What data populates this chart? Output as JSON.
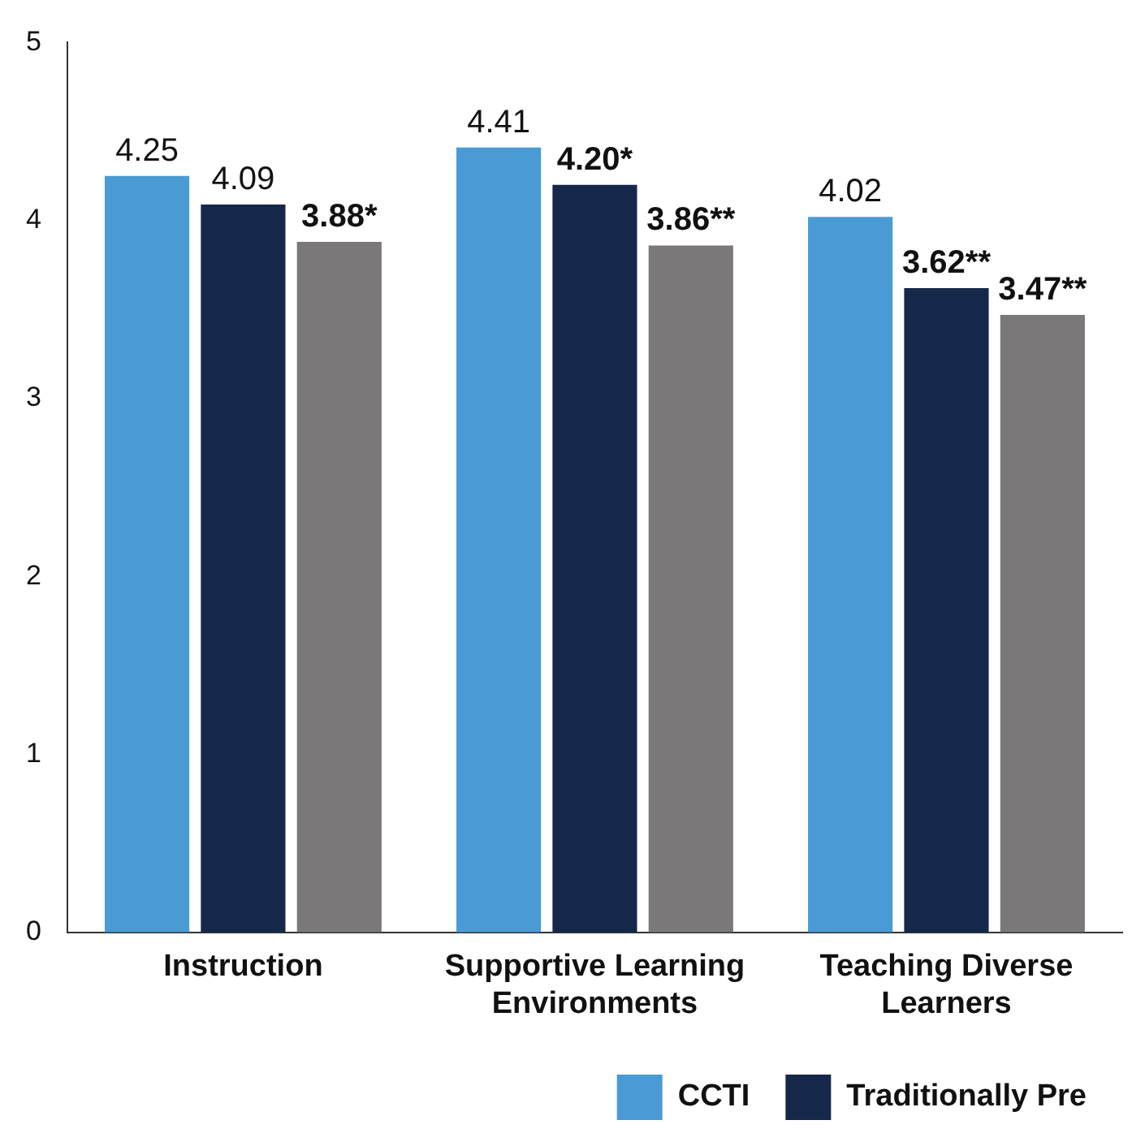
{
  "chart_data": {
    "type": "bar",
    "categories": [
      "Instruction",
      "Supportive Learning Environments",
      "Teaching Diverse Learners"
    ],
    "series": [
      {
        "name": "CCTI",
        "color": "#4a9bd4",
        "values": [
          4.25,
          4.41,
          4.02
        ],
        "value_labels": [
          "4.25",
          "4.41",
          "4.02"
        ]
      },
      {
        "name": "Traditionally Pre",
        "color": "#15284a",
        "values": [
          4.09,
          4.2,
          3.62
        ],
        "value_labels": [
          "4.09",
          "4.20*",
          "3.62**"
        ]
      },
      {
        "color": "#7a7879",
        "values": [
          3.88,
          3.86,
          3.47
        ],
        "value_labels": [
          "3.88*",
          "3.86**",
          "3.47**"
        ]
      }
    ],
    "ylim": [
      0,
      5
    ],
    "yticks": [
      0,
      1,
      2,
      3,
      4,
      5
    ],
    "grid": false,
    "legend": "bottom right"
  }
}
